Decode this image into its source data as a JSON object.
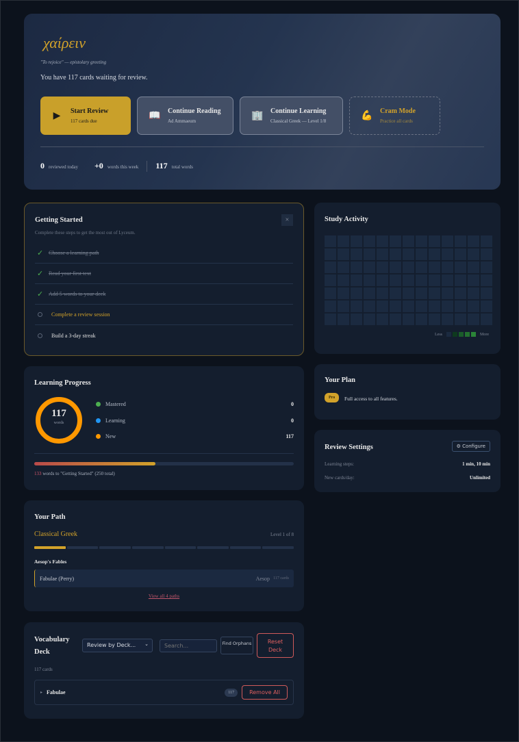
{
  "hero": {
    "greeting": "χαίρειν",
    "translation": "\"To rejoice\" — epistolary greeting",
    "waiting": "You have 117 cards waiting for review.",
    "buttons": [
      {
        "icon": "play-icon",
        "title": "Start Review",
        "sub": "117 cards due"
      },
      {
        "icon": "book-icon",
        "title": "Continue Reading",
        "sub": "Ad Ammaeum"
      },
      {
        "icon": "building-icon",
        "title": "Continue Learning",
        "sub": "Classical Greek — Level 1/8"
      },
      {
        "icon": "flexed-biceps-icon",
        "title": "Cram Mode",
        "sub": "Practice all cards"
      }
    ],
    "stats": [
      {
        "value": "0",
        "label": "reviewed today"
      },
      {
        "value": "+0",
        "label": "words this week"
      },
      {
        "value": "117",
        "label": "total words"
      }
    ]
  },
  "getting_started": {
    "title": "Getting Started",
    "close": "×",
    "desc": "Complete these steps to get the most out of Lyceum.",
    "steps": [
      {
        "label": "Choose a learning path",
        "done": true
      },
      {
        "label": "Read your first text",
        "done": true
      },
      {
        "label": "Add 5 words to your deck",
        "done": true
      },
      {
        "label": "Complete a review session",
        "done": false
      },
      {
        "label": "Build a 3-day streak",
        "done": false
      }
    ]
  },
  "learning_progress": {
    "title": "Learning Progress",
    "total": "117",
    "total_label": "words",
    "legend": [
      {
        "label": "Mastered",
        "value": "0",
        "color": "#4caf50"
      },
      {
        "label": "Learning",
        "value": "0",
        "color": "#2196f3"
      },
      {
        "label": "New",
        "value": "117",
        "color": "#ff9800"
      }
    ],
    "progress_fraction": 0.468,
    "remaining": "133",
    "remaining_text": " words to \"Getting Started\" (250 total)"
  },
  "path": {
    "title": "Your Path",
    "name": "Classical Greek",
    "level": "Level 1 of 8",
    "levels_total": 8,
    "levels_done": 1,
    "collection": "Aesop's Fables",
    "text": {
      "title": "Fabulae (Perry)",
      "author": "Aesop",
      "cards": "117 cards"
    },
    "view_all": "View all 4 paths"
  },
  "vocab": {
    "title": "Vocabulary Deck",
    "select": "Review by Deck...",
    "search_placeholder": "Search...",
    "find_orphans": "Find Orphans",
    "reset": "Reset Deck",
    "count": "117 cards",
    "decks": [
      {
        "name": "Fabulae",
        "count": "117",
        "remove": "Remove All"
      }
    ]
  },
  "activity": {
    "title": "Study Activity",
    "less": "Less",
    "more": "More",
    "weeks": 13,
    "days": 7,
    "scale_colors": [
      "#1b2a40",
      "#0e3a1e",
      "#1a5c2a",
      "#23702f",
      "#2b8538"
    ]
  },
  "plan": {
    "title": "Your Plan",
    "badge": "Pro",
    "text": "Full access to all features."
  },
  "review_settings": {
    "title": "Review Settings",
    "configure": "⚙ Configure",
    "rows": [
      {
        "label": "Learning steps:",
        "value": "1 min, 10 min"
      },
      {
        "label": "New cards/day:",
        "value": "Unlimited"
      }
    ]
  }
}
